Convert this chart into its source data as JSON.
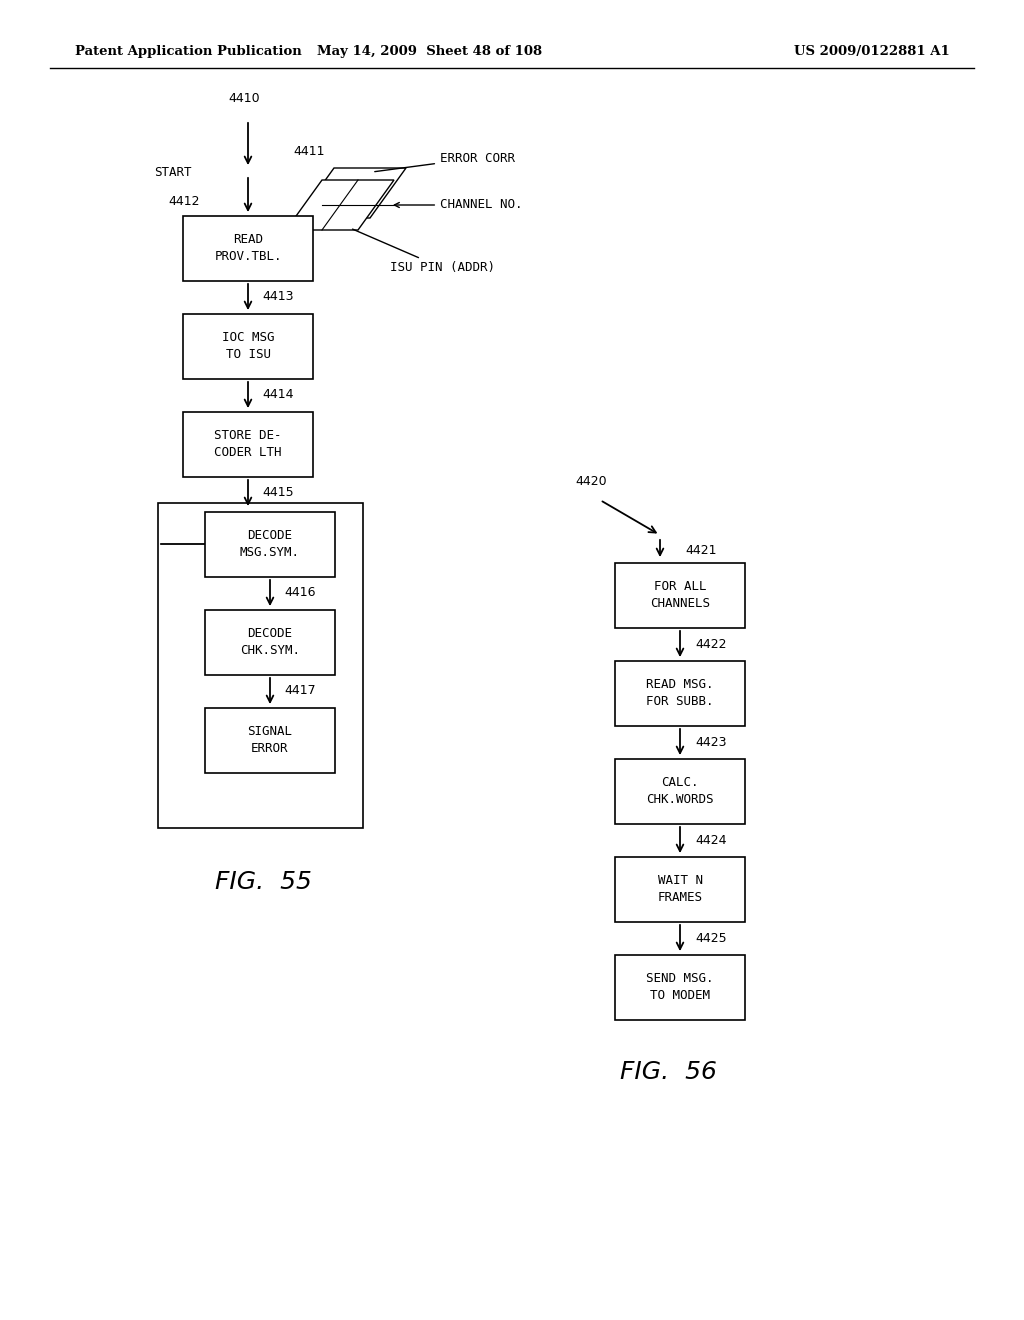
{
  "bg_color": "#ffffff",
  "header_left": "Patent Application Publication",
  "header_mid": "May 14, 2009  Sheet 48 of 108",
  "header_right": "US 2009/0122881 A1",
  "fig55_label": "FIG.  55",
  "fig56_label": "FIG.  56"
}
